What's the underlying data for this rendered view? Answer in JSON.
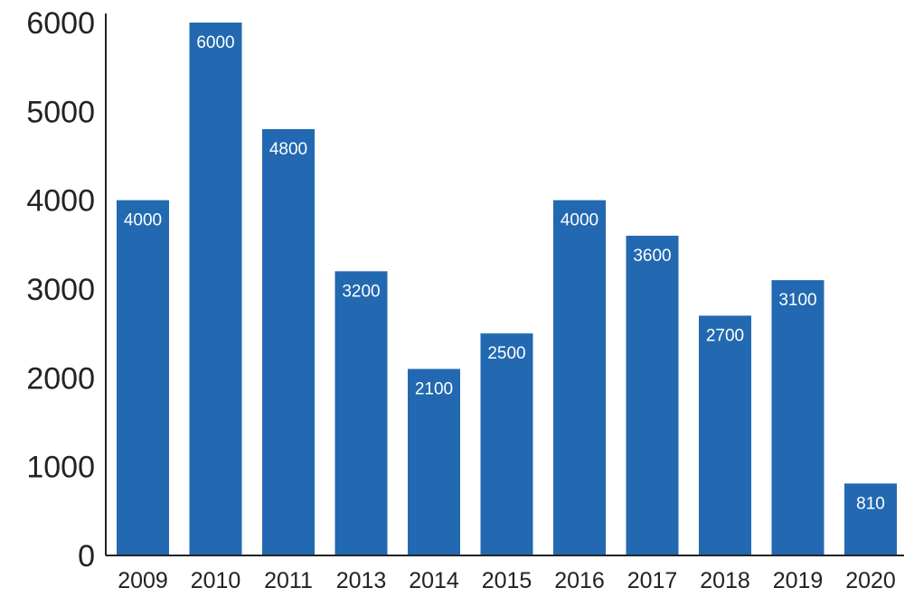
{
  "chart_data": {
    "type": "bar",
    "title": "",
    "xlabel": "",
    "ylabel": "",
    "categories": [
      "2009",
      "2010",
      "2011",
      "2013",
      "2014",
      "2015",
      "2016",
      "2017",
      "2018",
      "2019",
      "2020"
    ],
    "values": [
      4000,
      6000,
      4800,
      3200,
      2100,
      2500,
      4000,
      3600,
      2700,
      3100,
      810
    ],
    "data_labels": [
      "4000",
      "6000",
      "4800",
      "3200",
      "2100",
      "2500",
      "4000",
      "3600",
      "2700",
      "3100",
      "810"
    ],
    "ylim": [
      0,
      6000
    ],
    "yticks": [
      "0",
      "1000",
      "2000",
      "3000",
      "4000",
      "5000",
      "6000"
    ],
    "grid": false,
    "legend": "none",
    "bar_color": "#2269b1"
  }
}
